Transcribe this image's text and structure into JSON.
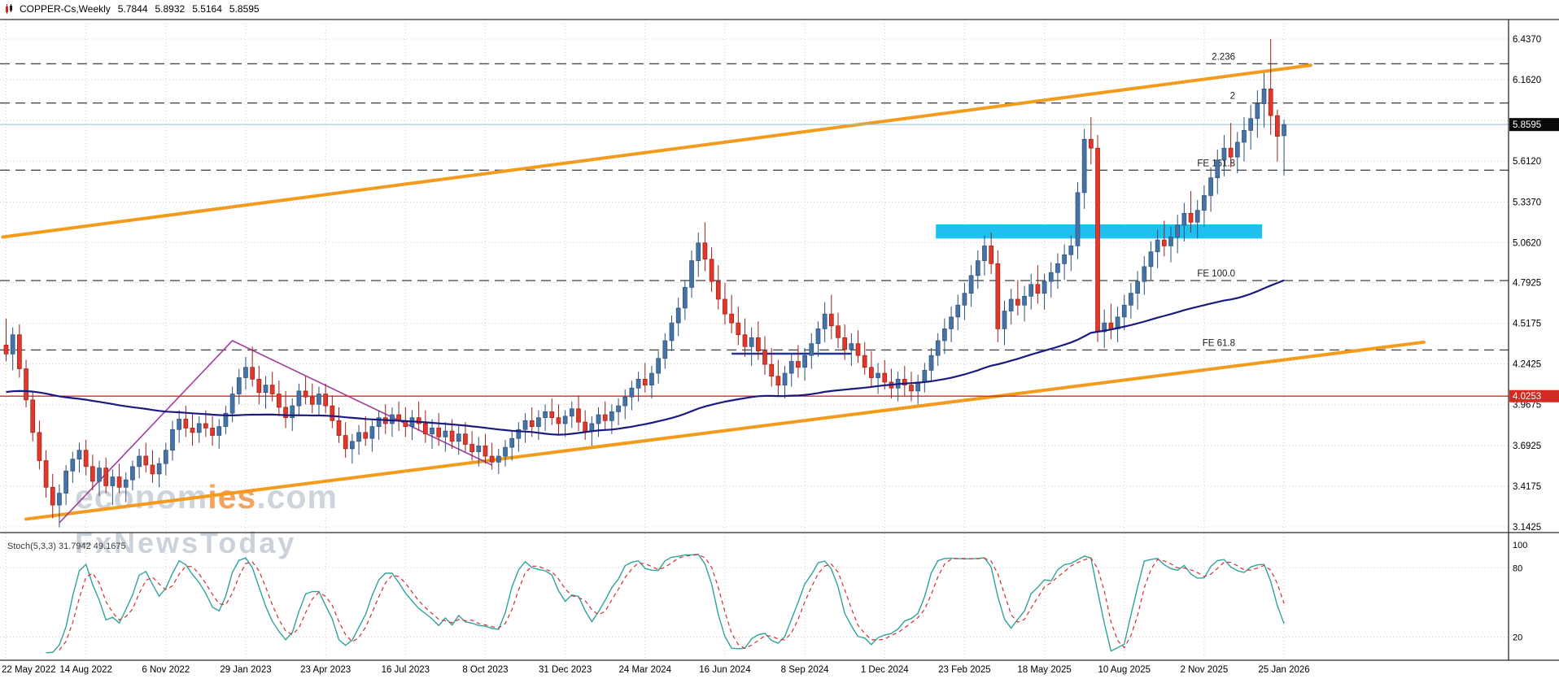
{
  "header": {
    "symbol": "COPPER-Cs,Weekly",
    "open": "5.7844",
    "high": "5.8932",
    "low": "5.5164",
    "close": "5.8595"
  },
  "watermark": {
    "brand_gray1": "econom",
    "brand_orange": "ies",
    "brand_gray2": ".com",
    "line2": "FxNewsToday"
  },
  "stoch_label": "Stoch(5,3,3) 31.7942 49.1675",
  "price_axis": {
    "current_price": "5.8595",
    "red_level": "4.0253",
    "ticks": [
      {
        "p": 6.437,
        "t": "6.4370"
      },
      {
        "p": 6.162,
        "t": "6.1620"
      },
      {
        "p": 5.887,
        "t": ""
      },
      {
        "p": 5.612,
        "t": "5.6120"
      },
      {
        "p": 5.337,
        "t": "5.3370"
      },
      {
        "p": 5.062,
        "t": "5.0620"
      },
      {
        "p": 4.7925,
        "t": "4.7925"
      },
      {
        "p": 4.5175,
        "t": "4.5175"
      },
      {
        "p": 4.2425,
        "t": "4.2425"
      },
      {
        "p": 3.9675,
        "t": "3.9675"
      },
      {
        "p": 3.6925,
        "t": "3.6925"
      },
      {
        "p": 3.4175,
        "t": "3.4175"
      },
      {
        "p": 3.1425,
        "t": "3.1425"
      }
    ]
  },
  "date_axis": {
    "ticks": [
      {
        "i": 0,
        "t": "22 May 2022"
      },
      {
        "i": 12,
        "t": "14 Aug 2022"
      },
      {
        "i": 24,
        "t": "6 Nov 2022"
      },
      {
        "i": 36,
        "t": "29 Jan 2023"
      },
      {
        "i": 48,
        "t": "23 Apr 2023"
      },
      {
        "i": 60,
        "t": "16 Jul 2023"
      },
      {
        "i": 72,
        "t": "8 Oct 2023"
      },
      {
        "i": 84,
        "t": "31 Dec 2023"
      },
      {
        "i": 96,
        "t": "24 Mar 2024"
      },
      {
        "i": 108,
        "t": "16 Jun 2024"
      },
      {
        "i": 120,
        "t": "8 Sep 2024"
      },
      {
        "i": 132,
        "t": "1 Dec 2024"
      },
      {
        "i": 144,
        "t": "23 Feb 2025"
      },
      {
        "i": 156,
        "t": "18 May 2025"
      },
      {
        "i": 168,
        "t": "10 Aug 2025"
      },
      {
        "i": 180,
        "t": "2 Nov 2025"
      },
      {
        "i": 192,
        "t": "25 Jan 2026"
      }
    ]
  },
  "colors": {
    "up": "#4673a5",
    "up_border": "#2c4f7c",
    "down": "#e2372b",
    "down_border": "#9c1f17",
    "ma": "#1a1a80",
    "trend": "#f29b1d",
    "zone": "#1fc0f0",
    "zigzag": "#a03ca0",
    "red_line": "#d12b23",
    "grid": "#cfcfcf",
    "stoch_k": "#2fa39a",
    "stoch_d": "#d03030",
    "tag_current_bg": "#0a0a0a",
    "fib_line": "#4d4d4d"
  },
  "chart_data": {
    "type": "candlestick",
    "title": "COPPER-Cs,Weekly",
    "timeframe": "Weekly",
    "ylim": [
      3.1425,
      6.437
    ],
    "x_first_label": "22 May 2022",
    "x_last_label": "25 Jan 2026",
    "current_price": 5.8595,
    "horizontal_red_line": 4.0253,
    "candles_ohlc": [
      [
        4.37,
        4.55,
        4.26,
        4.31
      ],
      [
        4.31,
        4.49,
        4.2,
        4.44
      ],
      [
        4.44,
        4.51,
        4.15,
        4.21
      ],
      [
        4.21,
        4.27,
        3.95,
        4.0
      ],
      [
        4.0,
        4.05,
        3.72,
        3.78
      ],
      [
        3.78,
        3.86,
        3.53,
        3.59
      ],
      [
        3.59,
        3.66,
        3.34,
        3.41
      ],
      [
        3.41,
        3.5,
        3.2,
        3.29
      ],
      [
        3.29,
        3.43,
        3.14,
        3.37
      ],
      [
        3.37,
        3.56,
        3.29,
        3.52
      ],
      [
        3.52,
        3.65,
        3.44,
        3.6
      ],
      [
        3.6,
        3.71,
        3.51,
        3.66
      ],
      [
        3.66,
        3.73,
        3.49,
        3.55
      ],
      [
        3.55,
        3.63,
        3.39,
        3.45
      ],
      [
        3.45,
        3.59,
        3.35,
        3.54
      ],
      [
        3.54,
        3.61,
        3.37,
        3.42
      ],
      [
        3.42,
        3.53,
        3.29,
        3.48
      ],
      [
        3.48,
        3.57,
        3.37,
        3.41
      ],
      [
        3.41,
        3.51,
        3.31,
        3.46
      ],
      [
        3.46,
        3.59,
        3.39,
        3.55
      ],
      [
        3.55,
        3.67,
        3.47,
        3.62
      ],
      [
        3.62,
        3.71,
        3.51,
        3.56
      ],
      [
        3.56,
        3.66,
        3.44,
        3.5
      ],
      [
        3.5,
        3.61,
        3.41,
        3.57
      ],
      [
        3.57,
        3.71,
        3.49,
        3.66
      ],
      [
        3.66,
        3.86,
        3.59,
        3.8
      ],
      [
        3.8,
        3.93,
        3.71,
        3.87
      ],
      [
        3.87,
        3.96,
        3.75,
        3.81
      ],
      [
        3.81,
        3.91,
        3.69,
        3.78
      ],
      [
        3.78,
        3.89,
        3.71,
        3.84
      ],
      [
        3.84,
        3.93,
        3.75,
        3.81
      ],
      [
        3.81,
        3.89,
        3.69,
        3.76
      ],
      [
        3.76,
        3.87,
        3.67,
        3.82
      ],
      [
        3.82,
        3.96,
        3.77,
        3.91
      ],
      [
        3.91,
        4.09,
        3.85,
        4.04
      ],
      [
        4.04,
        4.21,
        3.97,
        4.15
      ],
      [
        4.15,
        4.29,
        4.07,
        4.22
      ],
      [
        4.22,
        4.36,
        4.09,
        4.14
      ],
      [
        4.14,
        4.23,
        3.97,
        4.05
      ],
      [
        4.05,
        4.16,
        3.94,
        4.1
      ],
      [
        4.1,
        4.19,
        3.99,
        4.04
      ],
      [
        4.04,
        4.13,
        3.89,
        3.95
      ],
      [
        3.95,
        4.06,
        3.81,
        3.88
      ],
      [
        3.88,
        4.01,
        3.79,
        3.96
      ],
      [
        3.96,
        4.11,
        3.89,
        4.06
      ],
      [
        4.06,
        4.16,
        3.97,
        4.02
      ],
      [
        4.02,
        4.11,
        3.91,
        3.97
      ],
      [
        3.97,
        4.09,
        3.89,
        4.04
      ],
      [
        4.04,
        4.11,
        3.91,
        3.96
      ],
      [
        3.96,
        4.03,
        3.81,
        3.86
      ],
      [
        3.86,
        3.95,
        3.71,
        3.76
      ],
      [
        3.76,
        3.85,
        3.61,
        3.67
      ],
      [
        3.67,
        3.77,
        3.57,
        3.72
      ],
      [
        3.72,
        3.83,
        3.63,
        3.78
      ],
      [
        3.78,
        3.89,
        3.69,
        3.74
      ],
      [
        3.74,
        3.86,
        3.65,
        3.82
      ],
      [
        3.82,
        3.93,
        3.73,
        3.88
      ],
      [
        3.88,
        3.97,
        3.77,
        3.84
      ],
      [
        3.84,
        3.95,
        3.75,
        3.9
      ],
      [
        3.9,
        3.99,
        3.79,
        3.86
      ],
      [
        3.86,
        3.95,
        3.75,
        3.82
      ],
      [
        3.82,
        3.93,
        3.73,
        3.88
      ],
      [
        3.88,
        3.99,
        3.79,
        3.84
      ],
      [
        3.84,
        3.93,
        3.71,
        3.77
      ],
      [
        3.77,
        3.87,
        3.67,
        3.81
      ],
      [
        3.81,
        3.91,
        3.69,
        3.75
      ],
      [
        3.75,
        3.85,
        3.65,
        3.79
      ],
      [
        3.79,
        3.87,
        3.67,
        3.72
      ],
      [
        3.72,
        3.83,
        3.63,
        3.77
      ],
      [
        3.77,
        3.85,
        3.65,
        3.7
      ],
      [
        3.7,
        3.79,
        3.59,
        3.65
      ],
      [
        3.65,
        3.75,
        3.55,
        3.69
      ],
      [
        3.69,
        3.77,
        3.57,
        3.62
      ],
      [
        3.62,
        3.71,
        3.53,
        3.58
      ],
      [
        3.58,
        3.67,
        3.5,
        3.62
      ],
      [
        3.62,
        3.73,
        3.55,
        3.68
      ],
      [
        3.68,
        3.79,
        3.59,
        3.74
      ],
      [
        3.74,
        3.85,
        3.65,
        3.8
      ],
      [
        3.8,
        3.91,
        3.71,
        3.86
      ],
      [
        3.86,
        3.95,
        3.75,
        3.82
      ],
      [
        3.82,
        3.93,
        3.73,
        3.88
      ],
      [
        3.88,
        3.97,
        3.79,
        3.92
      ],
      [
        3.92,
        4.01,
        3.83,
        3.88
      ],
      [
        3.88,
        3.97,
        3.77,
        3.84
      ],
      [
        3.84,
        3.93,
        3.75,
        3.89
      ],
      [
        3.89,
        3.99,
        3.81,
        3.94
      ],
      [
        3.94,
        4.03,
        3.79,
        3.85
      ],
      [
        3.85,
        3.93,
        3.73,
        3.79
      ],
      [
        3.79,
        3.89,
        3.69,
        3.84
      ],
      [
        3.84,
        3.95,
        3.75,
        3.9
      ],
      [
        3.9,
        3.99,
        3.79,
        3.86
      ],
      [
        3.86,
        3.97,
        3.77,
        3.92
      ],
      [
        3.92,
        4.01,
        3.83,
        3.96
      ],
      [
        3.96,
        4.07,
        3.87,
        4.02
      ],
      [
        4.02,
        4.13,
        3.93,
        4.08
      ],
      [
        4.08,
        4.19,
        3.99,
        4.14
      ],
      [
        4.14,
        4.25,
        4.05,
        4.1
      ],
      [
        4.1,
        4.23,
        4.01,
        4.18
      ],
      [
        4.18,
        4.33,
        4.11,
        4.28
      ],
      [
        4.28,
        4.45,
        4.21,
        4.4
      ],
      [
        4.4,
        4.57,
        4.33,
        4.52
      ],
      [
        4.52,
        4.69,
        4.43,
        4.62
      ],
      [
        4.62,
        4.81,
        4.54,
        4.76
      ],
      [
        4.76,
        5.01,
        4.69,
        4.94
      ],
      [
        4.94,
        5.13,
        4.83,
        5.06
      ],
      [
        5.06,
        5.2,
        4.87,
        4.95
      ],
      [
        4.95,
        5.03,
        4.73,
        4.8
      ],
      [
        4.8,
        4.91,
        4.61,
        4.68
      ],
      [
        4.68,
        4.79,
        4.51,
        4.58
      ],
      [
        4.58,
        4.71,
        4.45,
        4.52
      ],
      [
        4.52,
        4.63,
        4.37,
        4.44
      ],
      [
        4.44,
        4.55,
        4.29,
        4.36
      ],
      [
        4.36,
        4.49,
        4.23,
        4.42
      ],
      [
        4.42,
        4.53,
        4.27,
        4.33
      ],
      [
        4.33,
        4.43,
        4.17,
        4.24
      ],
      [
        4.24,
        4.35,
        4.09,
        4.16
      ],
      [
        4.16,
        4.27,
        4.03,
        4.1
      ],
      [
        4.1,
        4.23,
        4.01,
        4.18
      ],
      [
        4.18,
        4.31,
        4.09,
        4.26
      ],
      [
        4.26,
        4.37,
        4.15,
        4.22
      ],
      [
        4.22,
        4.35,
        4.13,
        4.3
      ],
      [
        4.3,
        4.45,
        4.21,
        4.38
      ],
      [
        4.38,
        4.53,
        4.29,
        4.48
      ],
      [
        4.48,
        4.66,
        4.39,
        4.58
      ],
      [
        4.58,
        4.71,
        4.41,
        4.5
      ],
      [
        4.5,
        4.59,
        4.35,
        4.42
      ],
      [
        4.42,
        4.51,
        4.27,
        4.34
      ],
      [
        4.34,
        4.45,
        4.23,
        4.38
      ],
      [
        4.38,
        4.47,
        4.25,
        4.3
      ],
      [
        4.3,
        4.39,
        4.17,
        4.22
      ],
      [
        4.22,
        4.33,
        4.09,
        4.15
      ],
      [
        4.15,
        4.25,
        4.04,
        4.18
      ],
      [
        4.18,
        4.27,
        4.07,
        4.12
      ],
      [
        4.12,
        4.21,
        4.01,
        4.08
      ],
      [
        4.08,
        4.19,
        3.99,
        4.14
      ],
      [
        4.14,
        4.23,
        4.03,
        4.1
      ],
      [
        4.1,
        4.19,
        3.99,
        4.06
      ],
      [
        4.06,
        4.17,
        3.97,
        4.12
      ],
      [
        4.12,
        4.25,
        4.05,
        4.2
      ],
      [
        4.2,
        4.35,
        4.13,
        4.3
      ],
      [
        4.3,
        4.45,
        4.23,
        4.4
      ],
      [
        4.4,
        4.55,
        4.31,
        4.48
      ],
      [
        4.48,
        4.63,
        4.39,
        4.56
      ],
      [
        4.56,
        4.71,
        4.47,
        4.64
      ],
      [
        4.64,
        4.79,
        4.54,
        4.72
      ],
      [
        4.72,
        4.91,
        4.63,
        4.84
      ],
      [
        4.84,
        5.01,
        4.75,
        4.94
      ],
      [
        4.94,
        5.11,
        4.84,
        5.04
      ],
      [
        5.04,
        5.13,
        4.85,
        4.92
      ],
      [
        4.92,
        5.01,
        4.39,
        4.48
      ],
      [
        4.48,
        4.67,
        4.37,
        4.6
      ],
      [
        4.6,
        4.75,
        4.51,
        4.68
      ],
      [
        4.68,
        4.81,
        4.57,
        4.64
      ],
      [
        4.64,
        4.77,
        4.53,
        4.7
      ],
      [
        4.7,
        4.85,
        4.61,
        4.78
      ],
      [
        4.78,
        4.91,
        4.65,
        4.72
      ],
      [
        4.72,
        4.85,
        4.61,
        4.8
      ],
      [
        4.8,
        4.93,
        4.69,
        4.86
      ],
      [
        4.86,
        4.99,
        4.75,
        4.92
      ],
      [
        4.92,
        5.05,
        4.81,
        4.98
      ],
      [
        4.98,
        5.11,
        4.87,
        5.04
      ],
      [
        5.04,
        5.47,
        4.95,
        5.4
      ],
      [
        5.4,
        5.83,
        5.29,
        5.76
      ],
      [
        5.76,
        5.91,
        5.59,
        5.7
      ],
      [
        5.7,
        5.79,
        4.39,
        4.46
      ],
      [
        4.46,
        4.61,
        4.35,
        4.52
      ],
      [
        4.52,
        4.65,
        4.41,
        4.48
      ],
      [
        4.48,
        4.63,
        4.39,
        4.56
      ],
      [
        4.56,
        4.71,
        4.47,
        4.64
      ],
      [
        4.64,
        4.79,
        4.55,
        4.72
      ],
      [
        4.72,
        4.87,
        4.61,
        4.8
      ],
      [
        4.8,
        4.97,
        4.71,
        4.9
      ],
      [
        4.9,
        5.07,
        4.81,
        5.0
      ],
      [
        5.0,
        5.15,
        4.89,
        5.08
      ],
      [
        5.08,
        5.21,
        4.97,
        5.04
      ],
      [
        5.04,
        5.17,
        4.93,
        5.1
      ],
      [
        5.1,
        5.25,
        4.99,
        5.18
      ],
      [
        5.18,
        5.33,
        5.07,
        5.26
      ],
      [
        5.26,
        5.41,
        5.13,
        5.2
      ],
      [
        5.2,
        5.35,
        5.09,
        5.28
      ],
      [
        5.28,
        5.45,
        5.17,
        5.38
      ],
      [
        5.38,
        5.57,
        5.27,
        5.5
      ],
      [
        5.5,
        5.69,
        5.39,
        5.62
      ],
      [
        5.62,
        5.79,
        5.51,
        5.7
      ],
      [
        5.7,
        5.87,
        5.57,
        5.64
      ],
      [
        5.64,
        5.81,
        5.53,
        5.74
      ],
      [
        5.74,
        5.91,
        5.61,
        5.82
      ],
      [
        5.82,
        5.99,
        5.69,
        5.9
      ],
      [
        5.9,
        6.09,
        5.77,
        6.0
      ],
      [
        6.0,
        6.21,
        5.84,
        6.1
      ],
      [
        6.1,
        6.437,
        5.79,
        5.92
      ],
      [
        5.92,
        5.96,
        5.61,
        5.78
      ],
      [
        5.7844,
        5.8932,
        5.5164,
        5.8595
      ]
    ],
    "moving_average": {
      "period": 80,
      "prefill": 4.05
    },
    "fib_extension_levels": [
      {
        "label": "2.236",
        "price": 6.27
      },
      {
        "label": "2",
        "price": 6.005
      },
      {
        "label": "FE 161.8",
        "price": 5.551
      },
      {
        "label": "FE 100.0",
        "price": 4.806
      },
      {
        "label": "FE 61.8",
        "price": 4.337
      }
    ],
    "trend_lines": [
      {
        "name": "upper-channel",
        "from": {
          "i": -0.5,
          "p": 5.1
        },
        "to": {
          "i": 196,
          "p": 6.26
        }
      },
      {
        "name": "lower-channel",
        "from": {
          "i": 3,
          "p": 3.195
        },
        "to": {
          "i": 213,
          "p": 4.39
        }
      }
    ],
    "zigzag_line": {
      "points": [
        {
          "i": 8,
          "p": 3.17
        },
        {
          "i": 34,
          "p": 4.4
        },
        {
          "i": 73,
          "p": 3.56
        }
      ]
    },
    "support_segment": {
      "from": {
        "i": 109,
        "p": 4.312
      },
      "to": {
        "i": 127,
        "p": 4.312
      }
    },
    "supply_zone_rect": {
      "i1": 140,
      "i2": 189,
      "p_top": 5.185,
      "p_bottom": 5.09
    },
    "stochastic": {
      "name": "Stoch(5,3,3)",
      "k_period": 5,
      "slowing": 3,
      "d_period": 3,
      "scale_labels": [
        "100",
        "80",
        "20"
      ],
      "level_lines": [
        80,
        20
      ]
    }
  }
}
